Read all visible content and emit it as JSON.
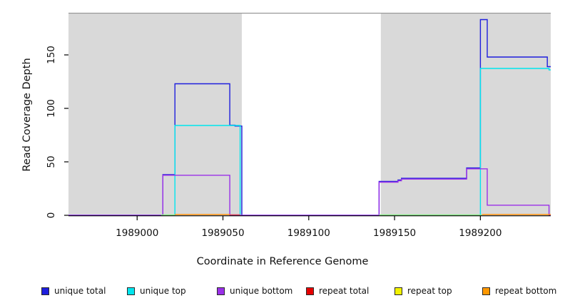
{
  "chart_data": {
    "type": "line",
    "title": "",
    "xlabel": "Coordinate in Reference Genome",
    "ylabel": "Read Coverage Depth",
    "xlim": [
      1988960,
      1989241
    ],
    "ylim": [
      0,
      189
    ],
    "xticks": [
      1989000,
      1989050,
      1989100,
      1989150,
      1989200
    ],
    "xtick_labels": [
      "1989000",
      "1989050",
      "1989100",
      "1989150",
      "1989200"
    ],
    "yticks": [
      0,
      50,
      100,
      150
    ],
    "ytick_labels": [
      "0",
      "50",
      "100",
      "150"
    ],
    "grid": false,
    "legend_position": "bottom",
    "background_color": "#ffffff",
    "shaded_region_color": "#d9d9d9",
    "top_border_color": "#999999",
    "axis_color": "#000000",
    "shaded_regions": [
      {
        "x0": 1988960,
        "x1": 1989061
      },
      {
        "x0": 1989142,
        "x1": 1989241
      }
    ],
    "series": [
      {
        "name": "unique total",
        "color": "#1e1edd",
        "draw_color": "#1e1edd",
        "segments": [
          [
            [
              1988960,
              0
            ],
            [
              1989015,
              0
            ],
            [
              1989015,
              38
            ],
            [
              1989022,
              38
            ],
            [
              1989022,
              123
            ],
            [
              1989054,
              123
            ],
            [
              1989054,
              84.3
            ],
            [
              1989057,
              84.3
            ],
            [
              1989057,
              83.5
            ],
            [
              1989061,
              83.5
            ],
            [
              1989061,
              0
            ],
            [
              1989141,
              0
            ],
            [
              1989141,
              31.7
            ],
            [
              1989152,
              31.7
            ],
            [
              1989152,
              33
            ],
            [
              1989154,
              33
            ],
            [
              1989154,
              34.6
            ],
            [
              1989192,
              34.6
            ],
            [
              1989192,
              44.3
            ],
            [
              1989200,
              44.3
            ],
            [
              1989200,
              183
            ],
            [
              1989204,
              183
            ],
            [
              1989204,
              148
            ],
            [
              1989239,
              148
            ],
            [
              1989239,
              139
            ],
            [
              1989241,
              139
            ]
          ]
        ]
      },
      {
        "name": "unique top",
        "color": "#00e5ee",
        "draw_color": "#00e5ee",
        "segments": [
          [
            [
              1989022,
              0
            ],
            [
              1989022,
              84
            ],
            [
              1989060,
              84
            ],
            [
              1989060,
              0
            ]
          ],
          [
            [
              1989200,
              0
            ],
            [
              1989200,
              137.3
            ],
            [
              1989240,
              137.3
            ],
            [
              1989240,
              136
            ],
            [
              1989241,
              136
            ]
          ]
        ]
      },
      {
        "name": "unique bottom",
        "color": "#9a30e8",
        "draw_color": "#9a30e8",
        "segments": [
          [
            [
              1988960,
              0
            ],
            [
              1989015,
              0
            ],
            [
              1989015,
              37.5
            ],
            [
              1989054,
              37.5
            ],
            [
              1989054,
              0
            ],
            [
              1989141,
              0
            ],
            [
              1989141,
              31
            ],
            [
              1989152,
              31
            ],
            [
              1989152,
              32.3
            ],
            [
              1989154,
              32.3
            ],
            [
              1989154,
              33.9
            ],
            [
              1989192,
              33.9
            ],
            [
              1989192,
              43.5
            ],
            [
              1989204,
              43.5
            ],
            [
              1989204,
              9.5
            ],
            [
              1989240,
              9.5
            ],
            [
              1989240,
              0
            ],
            [
              1989241,
              0
            ]
          ]
        ]
      },
      {
        "name": "repeat total",
        "color": "#e60000",
        "draw_color": "#d84060",
        "segments": [
          [
            [
              1989054,
              0.5
            ],
            [
              1989060,
              0.5
            ]
          ]
        ]
      },
      {
        "name": "repeat top",
        "color": "#f2f200",
        "draw_color": "#7fe87f",
        "segments": [
          [
            [
              1989014,
              0.4
            ],
            [
              1989022,
              0.4
            ]
          ],
          [
            [
              1989141,
              0.4
            ],
            [
              1989201,
              0.4
            ]
          ]
        ]
      },
      {
        "name": "repeat bottom",
        "color": "#ff9800",
        "draw_color": "#ff8c00",
        "segments": [
          [
            [
              1989022,
              0.8
            ],
            [
              1989054,
              0.8
            ]
          ],
          [
            [
              1989201,
              0.8
            ],
            [
              1989241,
              0.8
            ]
          ]
        ]
      }
    ]
  }
}
